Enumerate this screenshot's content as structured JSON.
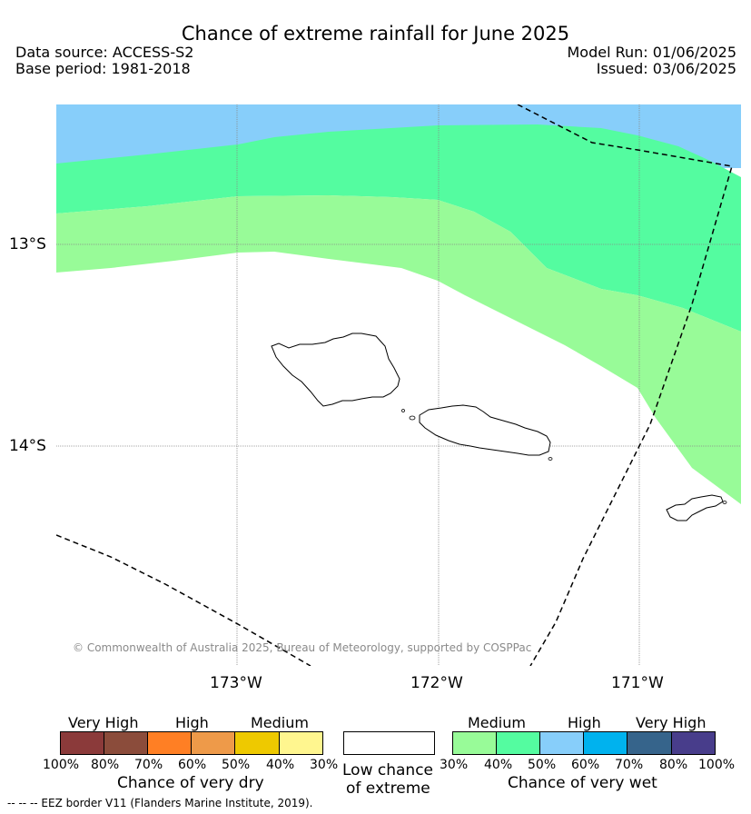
{
  "header": {
    "title": "Chance of extreme rainfall for June 2025",
    "data_source": "Data source: ACCESS-S2",
    "base_period": "Base period: 1981-2018",
    "model_run": "Model Run: 01/06/2025",
    "issued": "Issued: 03/06/2025"
  },
  "map": {
    "lat_labels": [
      "13°S",
      "14°S"
    ],
    "lon_labels": [
      "173°W",
      "172°W",
      "171°W"
    ],
    "copyright": "© Commonwealth of Australia 2025, Bureau of Meteorology, supported by COSPPac",
    "colors": {
      "wet_40_50": "#98fb98",
      "wet_50_60": "#54fca0",
      "wet_60_70": "#87cefa",
      "land_outline": "#000000",
      "eez_border": "#000000",
      "gridline": "#888888"
    }
  },
  "legend": {
    "dry": {
      "headings": [
        "Very High",
        "High",
        "Medium"
      ],
      "colors": [
        "#8b3a3a",
        "#8b4c3b",
        "#ff7f24",
        "#ee9a49",
        "#eec900",
        "#fff68f"
      ],
      "ticks": [
        "100%",
        "80%",
        "70%",
        "60%",
        "50%",
        "40%",
        "30%"
      ],
      "title": "Chance of very dry"
    },
    "low": {
      "title_line1": "Low chance",
      "title_line2": "of extreme",
      "color": "#ffffff"
    },
    "wet": {
      "headings": [
        "Medium",
        "High",
        "Very High"
      ],
      "colors": [
        "#98fb98",
        "#54fca0",
        "#87cefa",
        "#00b2ee",
        "#36648b",
        "#483d8b"
      ],
      "ticks": [
        "30%",
        "40%",
        "50%",
        "60%",
        "70%",
        "80%",
        "100%"
      ],
      "title": "Chance of very wet"
    }
  },
  "footnote": "--  --  -- EEZ border V11 (Flanders Marine Institute, 2019)."
}
